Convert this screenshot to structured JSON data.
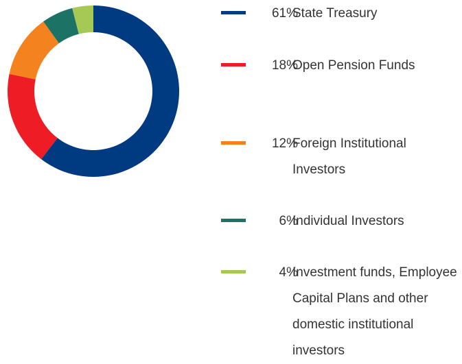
{
  "chart_data": {
    "type": "donut",
    "categories": [
      "State Treasury",
      "Open Pension Funds",
      "Foreign Institutional Investors",
      "Individual Investors",
      "Investment funds, Employee Capital Plans and other domestic institutional investors"
    ],
    "values": [
      61,
      18,
      12,
      6,
      4
    ],
    "value_labels": [
      "61%",
      "18%",
      "12%",
      "6%",
      "4%"
    ],
    "colors": [
      "#003a80",
      "#ee1c25",
      "#f4831f",
      "#1b7265",
      "#a5c954"
    ]
  }
}
